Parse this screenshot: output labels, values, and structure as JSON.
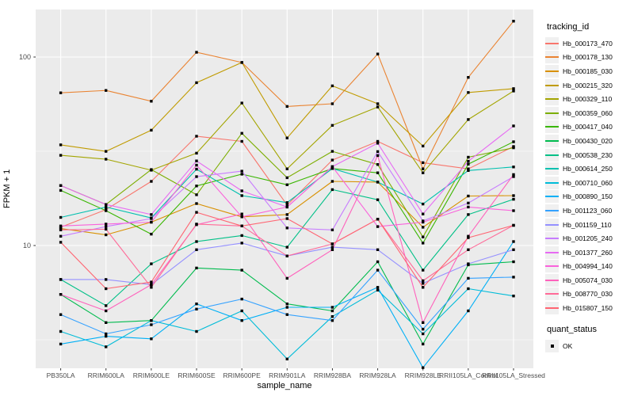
{
  "figure": {
    "y_axis": {
      "title": "FPKM + 1",
      "scale": "log10",
      "tick_labels": [
        "100",
        "10"
      ],
      "tick_values": [
        100,
        10
      ],
      "minor_gridline_values": [
        31.623,
        3.1623
      ],
      "range_shown": [
        2.2,
        180
      ]
    },
    "x_axis": {
      "title": "sample_name"
    }
  },
  "legend": {
    "tracking_id": {
      "title": "tracking_id"
    },
    "quant_status": {
      "title": "quant_status",
      "items": [
        {
          "label": "OK",
          "marker": "black-square"
        }
      ]
    }
  },
  "colors": {
    "panel_background": "#EBEBEB",
    "gridline": "#FFFFFF",
    "marker": "#000000",
    "tick_text": "#4D4D4D",
    "tick_mark": "#333333",
    "legend_key_background": "#F0F0F0"
  },
  "chart_data": {
    "type": "line",
    "title": "",
    "xlabel": "sample_name",
    "ylabel": "FPKM + 1",
    "yscale": "log10",
    "ylim": [
      2.2,
      180
    ],
    "grid": "major-and-minor-horizontal, major-vertical",
    "legend_position": "right",
    "point_marker": "black-square",
    "categories": [
      "PB350LA",
      "RRIM600LA",
      "RRIM600LE",
      "RRIM600SE",
      "RRIM600PE",
      "RRIM901LA",
      "RRIM928BA",
      "RRIM928LA",
      "RRIM928LE",
      "RRII105LA_Control",
      "RRII105LA_Stressed"
    ],
    "series": [
      {
        "name": "Hb_000173_470",
        "color": "#F8766D",
        "values": [
          12.5,
          15.5,
          21.9,
          38.0,
          35.7,
          16.4,
          28.4,
          35.7,
          27.5,
          25.5,
          33.5
        ]
      },
      {
        "name": "Hb_000178_130",
        "color": "#EA8331",
        "values": [
          64.6,
          66.5,
          58.3,
          106.0,
          93.5,
          54.7,
          56.5,
          103.7,
          25.5,
          78.0,
          155.0
        ]
      },
      {
        "name": "Hb_000185_030",
        "color": "#D89000",
        "values": [
          12.3,
          11.4,
          13.3,
          16.7,
          14.2,
          14.6,
          21.9,
          21.7,
          12.5,
          18.3,
          18.4
        ]
      },
      {
        "name": "Hb_000215_320",
        "color": "#C09B00",
        "values": [
          34.2,
          31.6,
          40.9,
          73.1,
          93.5,
          37.2,
          70.3,
          56.5,
          33.7,
          64.8,
          68.0
        ]
      },
      {
        "name": "Hb_000329_110",
        "color": "#A3A500",
        "values": [
          30.1,
          28.7,
          25.1,
          30.9,
          57.0,
          25.5,
          43.4,
          54.3,
          24.3,
          46.6,
          66.0
        ]
      },
      {
        "name": "Hb_000359_060",
        "color": "#7CAE00",
        "values": [
          20.8,
          16.5,
          25.3,
          18.6,
          39.4,
          22.9,
          31.6,
          26.9,
          11.1,
          29.4,
          33.0
        ]
      },
      {
        "name": "Hb_000417_040",
        "color": "#39B600",
        "values": [
          19.6,
          15.3,
          11.5,
          20.7,
          23.9,
          21.0,
          25.6,
          24.3,
          10.3,
          27.0,
          35.5
        ]
      },
      {
        "name": "Hb_000430_020",
        "color": "#00BB4E",
        "values": [
          5.5,
          3.9,
          4.0,
          7.6,
          7.4,
          4.9,
          4.5,
          8.2,
          3.0,
          7.9,
          8.2
        ]
      },
      {
        "name": "Hb_000538_230",
        "color": "#00C087",
        "values": [
          6.6,
          4.8,
          8.0,
          10.5,
          11.3,
          9.8,
          19.8,
          17.5,
          7.4,
          14.6,
          17.6
        ]
      },
      {
        "name": "Hb_000614_250",
        "color": "#00C0AF",
        "values": [
          14.1,
          16.0,
          14.0,
          25.4,
          18.4,
          16.9,
          25.6,
          21.7,
          16.6,
          25.0,
          26.1
        ]
      },
      {
        "name": "Hb_000710_060",
        "color": "#00BCD8",
        "values": [
          3.5,
          2.9,
          4.0,
          3.5,
          4.5,
          2.5,
          4.2,
          5.8,
          3.4,
          5.9,
          5.4
        ]
      },
      {
        "name": "Hb_000890_150",
        "color": "#00B0F6",
        "values": [
          3.0,
          3.3,
          3.2,
          4.9,
          4.0,
          4.7,
          4.7,
          6.0,
          2.25,
          4.5,
          10.5
        ]
      },
      {
        "name": "Hb_001123_060",
        "color": "#35A2FF",
        "values": [
          4.3,
          3.4,
          3.8,
          4.6,
          5.2,
          4.3,
          4.0,
          7.4,
          3.6,
          6.7,
          6.8
        ]
      },
      {
        "name": "Hb_001159_110",
        "color": "#9590FF",
        "values": [
          6.6,
          6.6,
          6.2,
          9.5,
          10.3,
          8.8,
          9.8,
          9.5,
          6.3,
          8.0,
          9.5
        ]
      },
      {
        "name": "Hb_001205_240",
        "color": "#C77CFF",
        "values": [
          11.2,
          12.6,
          13.9,
          23.2,
          24.8,
          12.4,
          12.1,
          31.5,
          13.5,
          16.8,
          23.2
        ]
      },
      {
        "name": "Hb_001377_260",
        "color": "#E76BF3",
        "values": [
          20.8,
          16.5,
          14.6,
          28.1,
          19.5,
          16.0,
          26.2,
          34.9,
          14.7,
          28.0,
          43.1
        ]
      },
      {
        "name": "Hb_004994_140",
        "color": "#FA62DB",
        "values": [
          12.7,
          13.0,
          13.3,
          26.7,
          14.2,
          16.0,
          26.2,
          12.6,
          13.3,
          16.0,
          15.3
        ]
      },
      {
        "name": "Hb_005074_030",
        "color": "#FF62BC",
        "values": [
          5.5,
          4.5,
          6.2,
          12.9,
          14.7,
          6.7,
          9.5,
          30.0,
          3.9,
          11.2,
          23.8
        ]
      },
      {
        "name": "Hb_008770_030",
        "color": "#FF6A98",
        "values": [
          12.1,
          12.2,
          6.0,
          13.0,
          12.7,
          8.8,
          10.2,
          13.8,
          6.5,
          9.5,
          12.8
        ]
      },
      {
        "name": "Hb_015807_150",
        "color": "#FF6572",
        "values": [
          10.4,
          5.9,
          6.4,
          15.0,
          12.7,
          13.9,
          10.2,
          13.8,
          6.0,
          11.0,
          12.8
        ]
      }
    ]
  }
}
